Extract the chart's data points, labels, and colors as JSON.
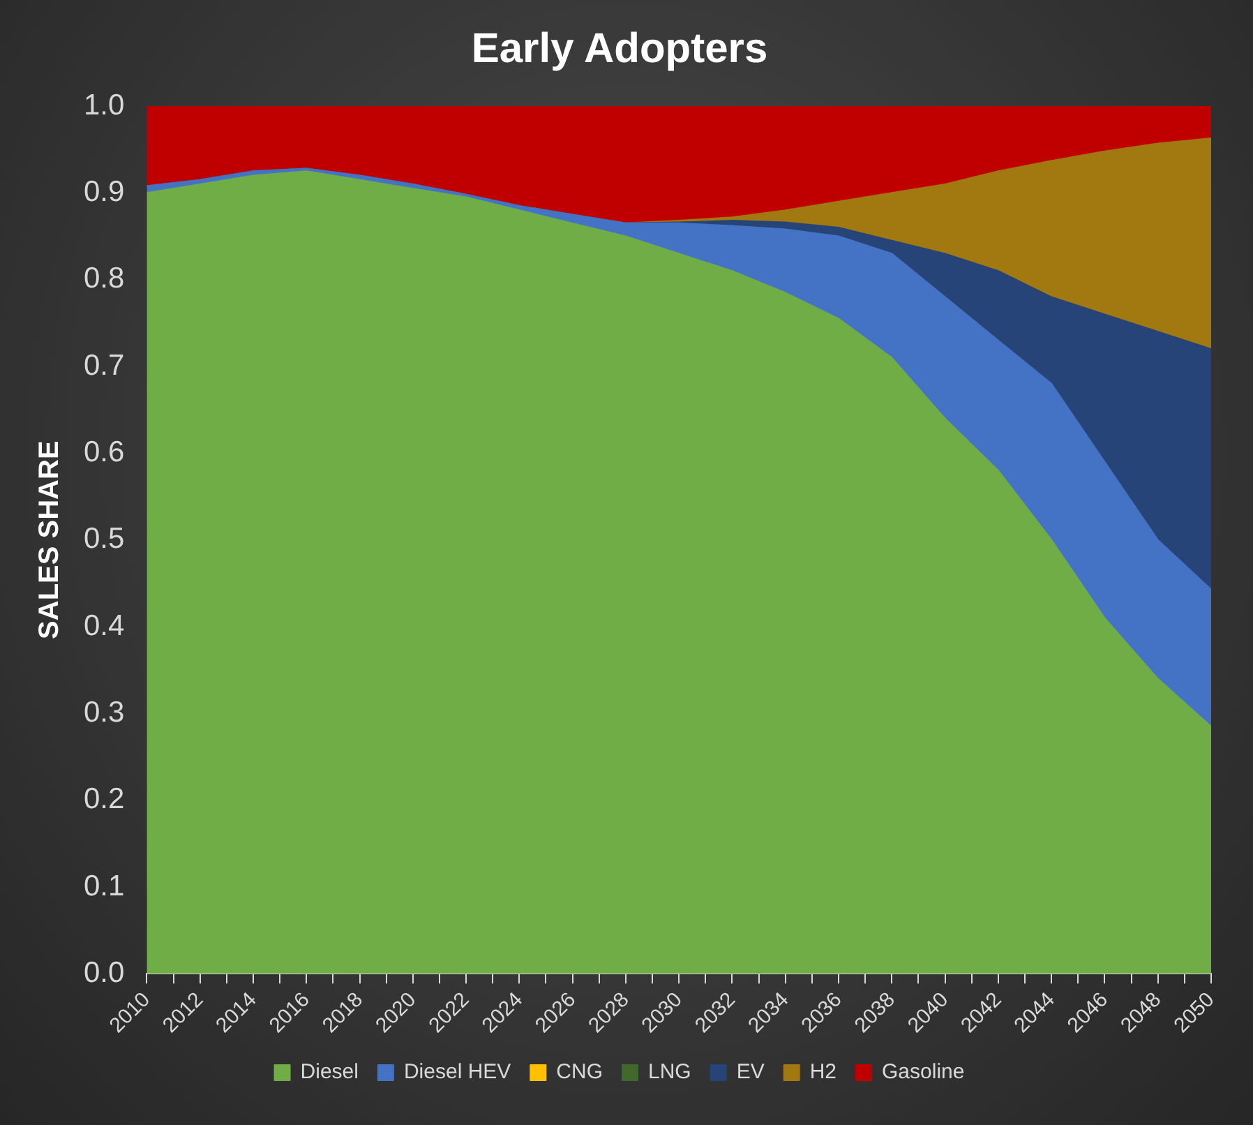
{
  "chart_data": {
    "type": "area",
    "title": "Early Adopters",
    "ylabel": "SALES SHARE",
    "stacked": true,
    "x": [
      2010,
      2012,
      2014,
      2016,
      2018,
      2020,
      2022,
      2024,
      2026,
      2028,
      2030,
      2032,
      2034,
      2036,
      2038,
      2040,
      2042,
      2044,
      2046,
      2048,
      2050
    ],
    "xlim": [
      2010,
      2050
    ],
    "xticks": [
      2010,
      {
        "value": 2011,
        "label": null
      },
      2012,
      {
        "value": 2013,
        "label": null
      },
      2014,
      {
        "value": 2015,
        "label": null
      },
      2016,
      {
        "value": 2017,
        "label": null
      },
      2018,
      {
        "value": 2019,
        "label": null
      },
      2020,
      {
        "value": 2021,
        "label": null
      },
      2022,
      {
        "value": 2023,
        "label": null
      },
      2024,
      {
        "value": 2025,
        "label": null
      },
      2026,
      {
        "value": 2027,
        "label": null
      },
      2028,
      {
        "value": 2029,
        "label": null
      },
      2030,
      {
        "value": 2031,
        "label": null
      },
      2032,
      {
        "value": 2033,
        "label": null
      },
      2034,
      {
        "value": 2035,
        "label": null
      },
      2036,
      {
        "value": 2037,
        "label": null
      },
      2038,
      {
        "value": 2039,
        "label": null
      },
      2040,
      {
        "value": 2041,
        "label": null
      },
      2042,
      {
        "value": 2043,
        "label": null
      },
      2044,
      {
        "value": 2045,
        "label": null
      },
      2046,
      {
        "value": 2047,
        "label": null
      },
      2048,
      {
        "value": 2049,
        "label": null
      },
      2050
    ],
    "ylim": [
      0,
      1
    ],
    "yticks": [
      {
        "value": 0,
        "label": "0.0"
      },
      0.1,
      0.2,
      0.3,
      0.4,
      0.5,
      0.6,
      0.7,
      0.8,
      0.9,
      {
        "value": 1,
        "label": "1.0"
      }
    ],
    "grid": false,
    "legend": "bottom",
    "series": [
      {
        "name": "Diesel",
        "color": "#70ad47",
        "values": [
          0.9,
          0.91,
          0.92,
          0.925,
          0.915,
          0.905,
          0.895,
          0.88,
          0.865,
          0.85,
          0.83,
          0.81,
          0.785,
          0.755,
          0.71,
          0.64,
          0.58,
          0.5,
          0.41,
          0.34,
          0.285
        ]
      },
      {
        "name": "Diesel HEV",
        "color": "#4472c4",
        "values": [
          0.008,
          0.005,
          0.005,
          0.003,
          0.005,
          0.005,
          0.003,
          0.005,
          0.01,
          0.015,
          0.035,
          0.052,
          0.073,
          0.095,
          0.12,
          0.14,
          0.15,
          0.18,
          0.18,
          0.16,
          0.158
        ]
      },
      {
        "name": "CNG",
        "color": "#ffc000",
        "values": [
          null,
          null,
          null,
          null,
          null,
          null,
          null,
          null,
          null,
          null,
          null,
          null,
          null,
          null,
          null,
          null,
          null,
          null,
          null,
          null,
          null
        ]
      },
      {
        "name": "LNG",
        "color": "#43682b",
        "values": [
          null,
          null,
          null,
          null,
          null,
          null,
          null,
          null,
          null,
          null,
          null,
          null,
          null,
          null,
          null,
          null,
          null,
          null,
          null,
          null,
          null
        ]
      },
      {
        "name": "EV",
        "color": "#264478",
        "values": [
          0,
          0,
          0,
          0,
          0,
          0,
          0,
          0,
          0,
          0,
          0.001,
          0.006,
          0.008,
          0.01,
          0.015,
          0.05,
          0.08,
          0.1,
          0.17,
          0.24,
          0.277
        ]
      },
      {
        "name": "H2",
        "color": "#a27810",
        "values": [
          0,
          0,
          0,
          0,
          0,
          0,
          0,
          0,
          0,
          0,
          0.002,
          0.004,
          0.014,
          0.03,
          0.055,
          0.08,
          0.115,
          0.157,
          0.188,
          0.217,
          0.243
        ]
      },
      {
        "name": "Gasoline",
        "color": "#c00000",
        "values": [
          0.092,
          0.085,
          0.075,
          0.072,
          0.08,
          0.09,
          0.102,
          0.115,
          0.125,
          0.135,
          0.132,
          0.128,
          0.12,
          0.11,
          0.1,
          0.09,
          0.075,
          0.063,
          0.052,
          0.043,
          0.037
        ]
      }
    ]
  }
}
